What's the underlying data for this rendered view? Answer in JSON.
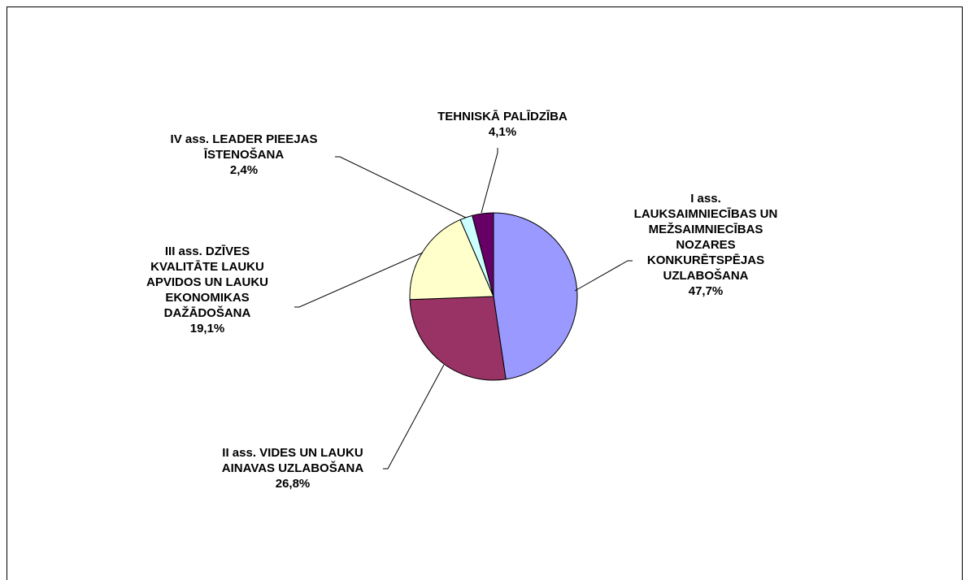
{
  "chart_data": {
    "type": "pie",
    "categories": [
      "I ass.\nLAUKSAIMNIECĪBAS UN\nMEŽSAIMNIECĪBAS\nNOZARES\nKONKURĒTSPĒJAS\nUZLABOŠANA",
      "II ass. VIDES UN LAUKU\nAINAVAS UZLABOŠANA",
      "III ass. DZĪVES\nKVALITĀTE LAUKU\nAPVIDOS UN LAUKU\nEKONOMIKAS\nDAŽĀDOŠANA",
      "IV ass. LEADER PIEEJAS\nĪSTENOŠANA",
      "TEHNISKĀ PALĪDZĪBA"
    ],
    "values": [
      47.7,
      26.8,
      19.1,
      2.4,
      4.1
    ],
    "value_labels": [
      "47,7%",
      "26,8%",
      "19,1%",
      "2,4%",
      "4,1%"
    ],
    "colors": [
      "#9999ff",
      "#993366",
      "#ffffcc",
      "#ccffff",
      "#660066"
    ]
  }
}
